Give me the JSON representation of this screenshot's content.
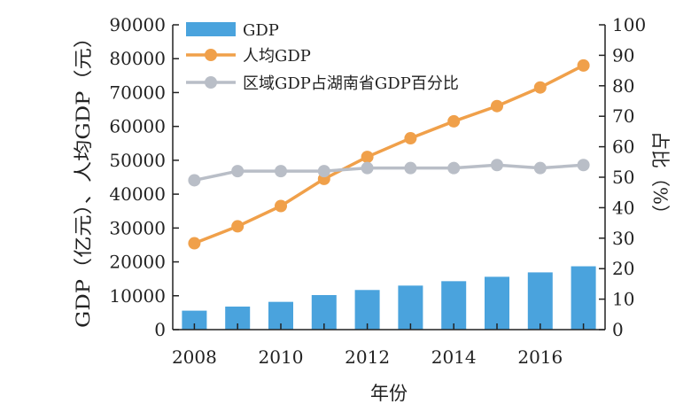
{
  "chart_data": {
    "type": "bar+line",
    "x_values": [
      2008,
      2009,
      2010,
      2011,
      2012,
      2013,
      2014,
      2015,
      2016,
      2017
    ],
    "x_tick_labels": [
      "2008",
      "2010",
      "2012",
      "2014",
      "2016"
    ],
    "xlabel": "年份",
    "ylabel_left": "GDP（亿元）、人均GDP（元）",
    "ylabel_right": "占比（%）",
    "ylim_left": [
      0,
      90000
    ],
    "ylim_right": [
      0,
      100
    ],
    "y_left_ticks": [
      "0",
      "10000",
      "20000",
      "30000",
      "40000",
      "50000",
      "60000",
      "70000",
      "80000",
      "90000"
    ],
    "y_right_ticks": [
      "0",
      "10",
      "20",
      "30",
      "40",
      "50",
      "60",
      "70",
      "80",
      "90",
      "100"
    ],
    "series": [
      {
        "name": "GDP",
        "kind": "bar",
        "axis": "left",
        "color": "#4aa3dd",
        "values": [
          5600,
          6800,
          8200,
          10200,
          11700,
          13000,
          14300,
          15600,
          16900,
          18700
        ]
      },
      {
        "name": "人均GDP",
        "kind": "line",
        "axis": "left",
        "color": "#f0a04a",
        "values": [
          25500,
          30500,
          36500,
          44500,
          51000,
          56500,
          61500,
          66000,
          71500,
          78000
        ]
      },
      {
        "name": "区域GDP占湖南省GDP百分比",
        "kind": "line",
        "axis": "right",
        "color": "#b9bec7",
        "values": [
          49,
          52,
          52,
          52,
          53,
          53,
          53,
          54,
          53,
          54
        ]
      }
    ],
    "legend": {
      "position": "top-left"
    },
    "grid": false
  }
}
